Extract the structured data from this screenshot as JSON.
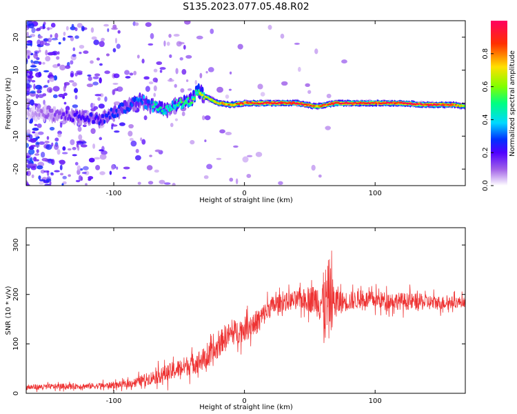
{
  "title": "S135.2023.077.05.48.R02",
  "chart_data": [
    {
      "type": "heatmap",
      "xlabel": "Height of straight line (km)",
      "ylabel": "Frequency (Hz)",
      "xlim": [
        -167,
        169
      ],
      "ylim": [
        -25,
        25
      ],
      "xticks": [
        -100,
        0,
        100
      ],
      "xtick_labels": [
        "-100",
        "0",
        "100"
      ],
      "yticks": [
        -20,
        -10,
        0,
        10,
        20
      ],
      "ytick_labels": [
        "-20",
        "-10",
        "0",
        "10",
        "20"
      ],
      "grid": false,
      "colorbar": {
        "label": "Normalized spectral amplitude",
        "range": [
          0,
          1
        ],
        "ticks": [
          0.0,
          0.2,
          0.4,
          0.6,
          0.8
        ],
        "tick_labels": [
          "0.0",
          "0.2",
          "0.4",
          "0.6",
          "0.8"
        ],
        "colors": [
          "#ffffff",
          "#a060e8",
          "#5000ff",
          "#0030ff",
          "#00d8ff",
          "#00ff80",
          "#80ff00",
          "#ffe000",
          "#ff3000",
          "#ff0060"
        ]
      },
      "ridge": {
        "x": [
          -167,
          -130,
          -110,
          -95,
          -80,
          -70,
          -60,
          -50,
          -40,
          -36,
          -30,
          -20,
          -10,
          0,
          20,
          40,
          55,
          70,
          85,
          100,
          120,
          140,
          160,
          169
        ],
        "y": [
          -3,
          -4,
          -5,
          -2,
          1,
          -1,
          -2,
          0,
          1,
          4,
          2,
          0,
          -0.5,
          0,
          0,
          0,
          -1,
          0,
          0,
          0,
          0,
          -0.5,
          -0.5,
          -1
        ],
        "level": [
          0.05,
          0.25,
          0.3,
          0.35,
          0.4,
          0.45,
          0.45,
          0.5,
          0.55,
          0.6,
          0.65,
          0.75,
          0.8,
          0.9,
          0.95,
          0.95,
          0.8,
          0.95,
          0.95,
          0.9,
          0.95,
          0.95,
          0.9,
          0.6
        ]
      },
      "noise_density_note": ""
    },
    {
      "type": "line",
      "xlabel": "Height of straight line (km)",
      "ylabel": "SNR (10 * v/v)",
      "xlim": [
        -167,
        169
      ],
      "ylim": [
        0,
        335
      ],
      "xticks": [
        -100,
        0,
        100
      ],
      "xtick_labels": [
        "-100",
        "0",
        "100"
      ],
      "yticks": [
        0,
        100,
        200,
        300
      ],
      "ytick_labels": [
        "0",
        "100",
        "200",
        "300"
      ],
      "grid": false,
      "color": "#ee3333",
      "x": [
        -167,
        -140,
        -110,
        -90,
        -80,
        -60,
        -40,
        -25,
        -15,
        0,
        10,
        20,
        30,
        45,
        55,
        60,
        63,
        65,
        68,
        75,
        90,
        110,
        130,
        150,
        169
      ],
      "y": [
        12,
        14,
        15,
        18,
        25,
        40,
        60,
        75,
        115,
        130,
        145,
        175,
        185,
        190,
        190,
        185,
        175,
        190,
        185,
        185,
        190,
        188,
        185,
        183,
        185
      ],
      "spread": [
        8,
        8,
        9,
        10,
        15,
        25,
        30,
        35,
        35,
        35,
        35,
        30,
        25,
        30,
        45,
        80,
        130,
        120,
        60,
        30,
        25,
        25,
        25,
        20,
        15
      ]
    }
  ]
}
